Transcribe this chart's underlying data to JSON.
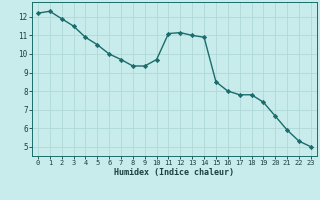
{
  "x": [
    0,
    1,
    2,
    3,
    4,
    5,
    6,
    7,
    8,
    9,
    10,
    11,
    12,
    13,
    14,
    15,
    16,
    17,
    18,
    19,
    20,
    21,
    22,
    23
  ],
  "y": [
    12.2,
    12.3,
    11.9,
    11.5,
    10.9,
    10.5,
    10.0,
    9.7,
    9.35,
    9.35,
    9.7,
    11.1,
    11.15,
    11.0,
    10.9,
    8.5,
    8.0,
    7.8,
    7.8,
    7.4,
    6.65,
    5.9,
    5.3,
    5.0
  ],
  "line_color": "#1a6b6b",
  "marker": "D",
  "marker_size": 2.2,
  "bg_color": "#c8ecec",
  "grid_color": "#b0d8d8",
  "xlabel": "Humidex (Indice chaleur)",
  "ylim": [
    4.5,
    12.8
  ],
  "xlim": [
    -0.5,
    23.5
  ],
  "yticks": [
    5,
    6,
    7,
    8,
    9,
    10,
    11,
    12
  ],
  "xticks": [
    0,
    1,
    2,
    3,
    4,
    5,
    6,
    7,
    8,
    9,
    10,
    11,
    12,
    13,
    14,
    15,
    16,
    17,
    18,
    19,
    20,
    21,
    22,
    23
  ],
  "font_color": "#1a4040",
  "axis_color": "#1a6b6b",
  "xlabel_fontsize": 6.0,
  "tick_fontsize_x": 5.0,
  "tick_fontsize_y": 5.5
}
